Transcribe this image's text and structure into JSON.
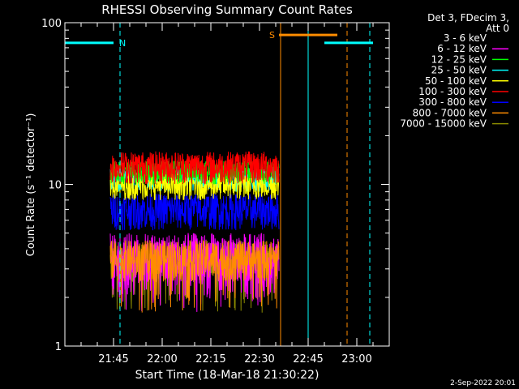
{
  "chart_data": {
    "type": "line",
    "title": "RHESSI Observing Summary Count Rates",
    "xlabel": "Start Time (18-Mar-18 21:30:22)",
    "ylabel": "Count Rate (s⁻¹ detector⁻¹)",
    "yscale": "log",
    "ylim": [
      1,
      100
    ],
    "xlim_minutes": [
      0,
      100
    ],
    "y_ticks": [
      {
        "value": 1,
        "label": "1"
      },
      {
        "value": 10,
        "label": "10"
      },
      {
        "value": 100,
        "label": "100"
      }
    ],
    "x_ticks": [
      {
        "minute": 15,
        "label": "21:45"
      },
      {
        "minute": 30,
        "label": "22:00"
      },
      {
        "minute": 45,
        "label": "22:15"
      },
      {
        "minute": 60,
        "label": "22:30"
      },
      {
        "minute": 75,
        "label": "22:45"
      },
      {
        "minute": 90,
        "label": "23:00"
      }
    ],
    "data_window_minutes": [
      14,
      66
    ],
    "series": [
      {
        "name": "3 - 6 keV",
        "color": "#ffffff",
        "level": 0,
        "spread": 0
      },
      {
        "name": "6 - 12 keV",
        "color": "#ff00ff",
        "level": 3.5,
        "spread": 1.5
      },
      {
        "name": "12 - 25 keV",
        "color": "#00ff00",
        "level": 12,
        "spread": 2.0
      },
      {
        "name": "25 - 50 keV",
        "color": "#00ffff",
        "level": 11,
        "spread": 2.0
      },
      {
        "name": "50 - 100 keV",
        "color": "#ffff00",
        "level": 10,
        "spread": 2.0
      },
      {
        "name": "100 - 300 keV",
        "color": "#ff0000",
        "level": 13,
        "spread": 3.0
      },
      {
        "name": "300 - 800 keV",
        "color": "#0000ff",
        "level": 7,
        "spread": 1.8
      },
      {
        "name": "800 - 7000 keV",
        "color": "#ff8c00",
        "level": 3.5,
        "spread": 1.0
      },
      {
        "name": "7000 - 15000 keV",
        "color": "#8b8b00",
        "level": 3.5,
        "spread": 1.0
      }
    ],
    "annotations": {
      "flags": [
        {
          "label": "N",
          "color": "#00ffff",
          "value": 75,
          "segments": [
            [
              -5,
              15
            ],
            [
              80,
              95
            ]
          ]
        },
        {
          "label": "S",
          "color": "#ff8c00",
          "value": 84,
          "segments": [
            [
              66,
              84
            ]
          ]
        }
      ],
      "vlines": [
        {
          "minute": 0,
          "color": "#00ffff",
          "style": "solid"
        },
        {
          "minute": 17,
          "color": "#00ffff",
          "style": "dashed"
        },
        {
          "minute": 66.5,
          "color": "#ff8c00",
          "style": "solid"
        },
        {
          "minute": 75,
          "color": "#00ffff",
          "style": "solid"
        },
        {
          "minute": 87,
          "color": "#ff8c00",
          "style": "dashed"
        },
        {
          "minute": 94,
          "color": "#00ffff",
          "style": "dashed"
        }
      ]
    },
    "legend_header": [
      "Det 3, FDecim 3,",
      "Att 0"
    ],
    "legend_position": "top-right",
    "footer": "2-Sep-2022 20:01"
  }
}
